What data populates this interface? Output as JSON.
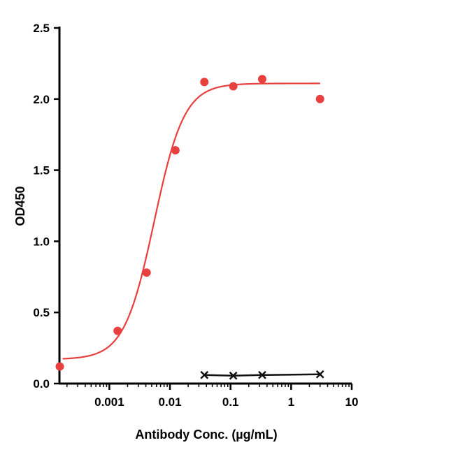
{
  "chart_data": {
    "type": "scatter",
    "xlabel": "Antibody Conc. (µg/mL)",
    "ylabel": "OD450",
    "x_scale": "log",
    "xlim": [
      0.00015,
      10
    ],
    "ylim": [
      0,
      2.5
    ],
    "x_ticks": [
      0.001,
      0.01,
      0.1,
      1,
      10
    ],
    "x_tick_labels": [
      "0.001",
      "0.01",
      "0.1",
      "1",
      "10"
    ],
    "y_ticks": [
      0,
      0.5,
      1.0,
      1.5,
      2.0,
      2.5
    ],
    "y_tick_labels": [
      "0.0",
      "0.5",
      "1.0",
      "1.5",
      "2.0",
      "2.5"
    ],
    "grid": false,
    "series": [
      {
        "color": "#e8403f",
        "marker": "circle",
        "fit": "4PL sigmoid",
        "x": [
          0.000152,
          0.00137,
          0.00412,
          0.0123,
          0.037,
          0.111,
          0.333,
          3.0
        ],
        "y": [
          0.12,
          0.37,
          0.78,
          1.64,
          2.12,
          2.09,
          2.14,
          2.0
        ],
        "fit_params": {
          "bottom": 0.17,
          "top": 2.11,
          "ec50": 0.0055,
          "hill": 1.75,
          "x_range": [
            0.00017,
            3.0
          ]
        }
      },
      {
        "color": "#111111",
        "marker": "x",
        "fit": "line",
        "x": [
          0.037,
          0.111,
          0.333,
          3.0
        ],
        "y": [
          0.06,
          0.055,
          0.06,
          0.065
        ]
      }
    ]
  }
}
